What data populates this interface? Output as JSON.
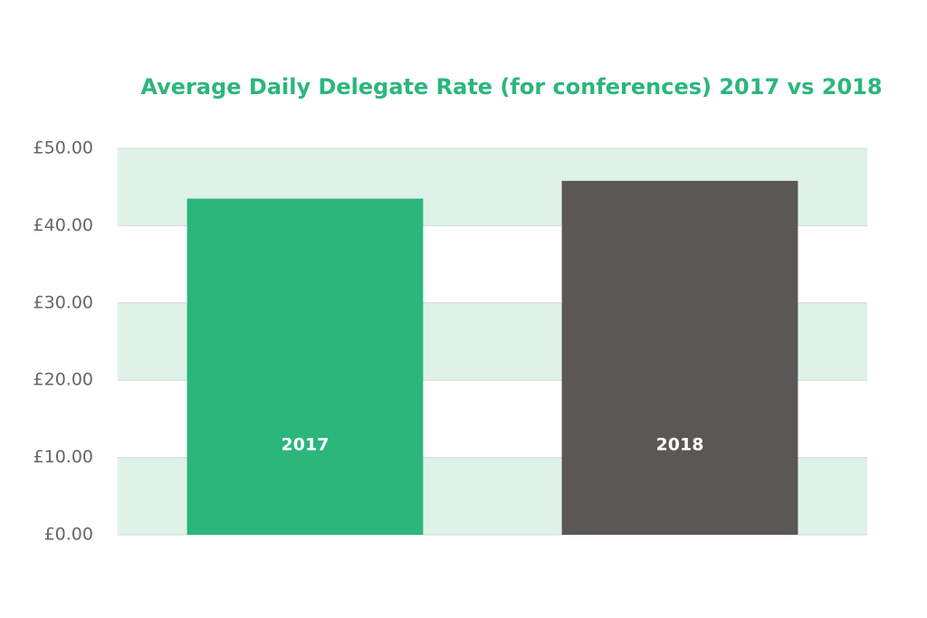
{
  "chart_data": {
    "type": "bar",
    "title": "Average Daily Delegate Rate (for conferences) 2017 vs 2018",
    "categories": [
      "2017",
      "2018"
    ],
    "values": [
      43.5,
      45.8
    ],
    "colors": [
      "#2bb67c",
      "#5b5755"
    ],
    "ylim": [
      0,
      50
    ],
    "yticks": [
      {
        "value": 0,
        "label": "£0.00"
      },
      {
        "value": 10,
        "label": "£10.00"
      },
      {
        "value": 20,
        "label": "£20.00"
      },
      {
        "value": 30,
        "label": "£30.00"
      },
      {
        "value": 40,
        "label": "£40.00"
      },
      {
        "value": 50,
        "label": "£50.00"
      }
    ],
    "grid": true
  }
}
